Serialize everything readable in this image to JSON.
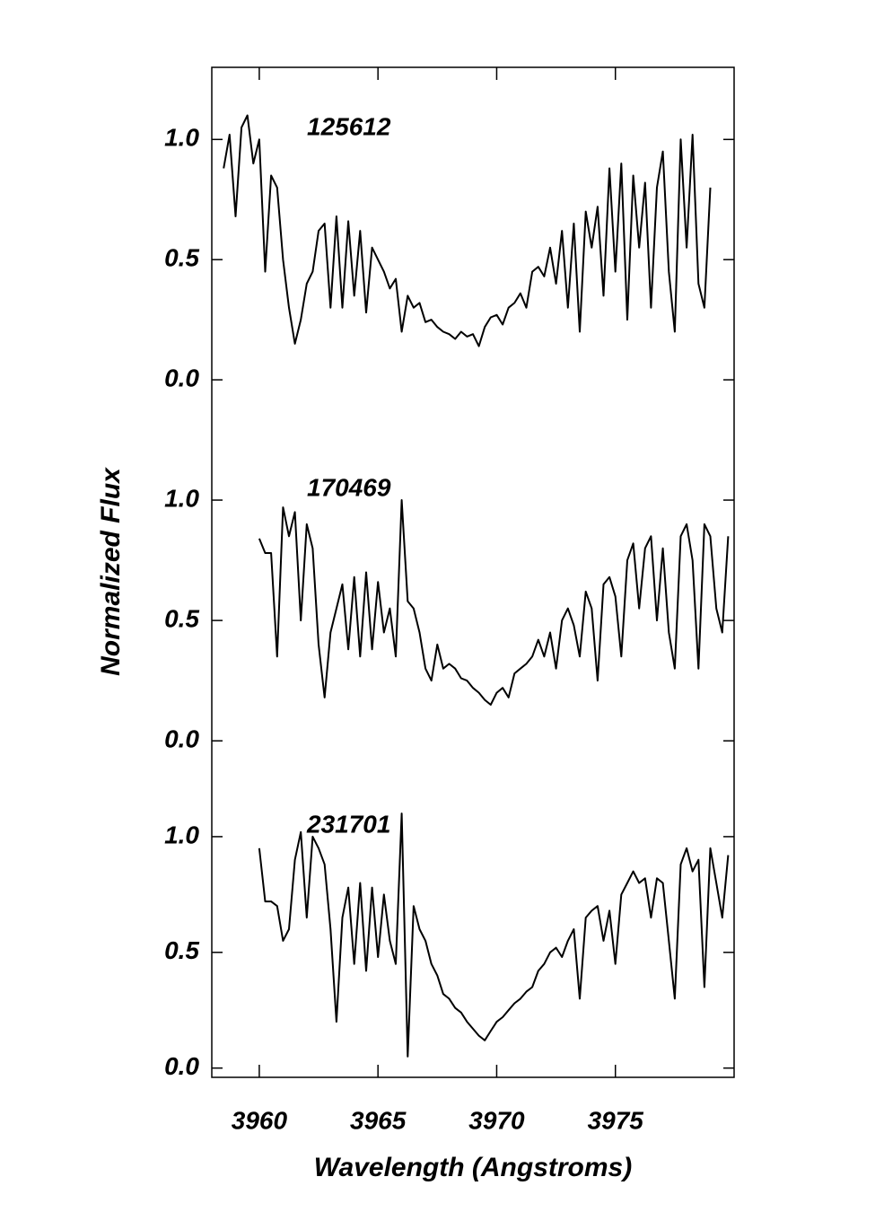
{
  "chart_data": [
    {
      "type": "line",
      "label": "125612",
      "xlim": [
        3958,
        3980
      ],
      "ylim": [
        -0.25,
        1.3
      ],
      "yticks": [
        {
          "value": 0,
          "label": "0.0"
        },
        {
          "value": 0.5,
          "label": "0.5"
        },
        {
          "value": 1,
          "label": "1.0"
        }
      ],
      "color": "#000000",
      "x": [
        3958.5,
        3958.75,
        3959,
        3959.25,
        3959.5,
        3959.75,
        3960,
        3960.25,
        3960.5,
        3960.75,
        3961,
        3961.25,
        3961.5,
        3961.75,
        3962,
        3962.25,
        3962.5,
        3962.75,
        3963,
        3963.25,
        3963.5,
        3963.75,
        3964,
        3964.25,
        3964.5,
        3964.75,
        3965,
        3965.25,
        3965.5,
        3965.75,
        3966,
        3966.25,
        3966.5,
        3966.75,
        3967,
        3967.25,
        3967.5,
        3967.75,
        3968,
        3968.25,
        3968.5,
        3968.75,
        3969,
        3969.25,
        3969.5,
        3969.75,
        3970,
        3970.25,
        3970.5,
        3970.75,
        3971,
        3971.25,
        3971.5,
        3971.75,
        3972,
        3972.25,
        3972.5,
        3972.75,
        3973,
        3973.25,
        3973.5,
        3973.75,
        3974,
        3974.25,
        3974.5,
        3974.75,
        3975,
        3975.25,
        3975.5,
        3975.75,
        3976,
        3976.25,
        3976.5,
        3976.75,
        3977,
        3977.25,
        3977.5,
        3977.75,
        3978,
        3978.25,
        3978.5,
        3978.75,
        3979
      ],
      "values": [
        0.88,
        1.02,
        0.68,
        1.05,
        1.1,
        0.9,
        1.0,
        0.45,
        0.85,
        0.8,
        0.5,
        0.3,
        0.15,
        0.25,
        0.4,
        0.45,
        0.62,
        0.65,
        0.3,
        0.68,
        0.3,
        0.66,
        0.35,
        0.62,
        0.28,
        0.55,
        0.5,
        0.45,
        0.38,
        0.42,
        0.2,
        0.35,
        0.3,
        0.32,
        0.24,
        0.25,
        0.22,
        0.2,
        0.19,
        0.17,
        0.2,
        0.18,
        0.19,
        0.14,
        0.22,
        0.26,
        0.27,
        0.23,
        0.3,
        0.32,
        0.36,
        0.3,
        0.45,
        0.47,
        0.43,
        0.55,
        0.4,
        0.62,
        0.3,
        0.65,
        0.2,
        0.7,
        0.55,
        0.72,
        0.35,
        0.88,
        0.45,
        0.9,
        0.25,
        0.85,
        0.55,
        0.82,
        0.3,
        0.8,
        0.95,
        0.45,
        0.2,
        1.0,
        0.55,
        1.02,
        0.4,
        0.3,
        0.8
      ]
    },
    {
      "type": "line",
      "label": "170469",
      "ylabel": "Normalized Flux",
      "xlim": [
        3958,
        3980
      ],
      "ylim": [
        -0.1,
        1.25
      ],
      "yticks": [
        {
          "value": 0,
          "label": "0.0"
        },
        {
          "value": 0.5,
          "label": "0.5"
        },
        {
          "value": 1,
          "label": "1.0"
        }
      ],
      "color": "#000000",
      "x": [
        3960,
        3960.25,
        3960.5,
        3960.75,
        3961,
        3961.25,
        3961.5,
        3961.75,
        3962,
        3962.25,
        3962.5,
        3962.75,
        3963,
        3963.25,
        3963.5,
        3963.75,
        3964,
        3964.25,
        3964.5,
        3964.75,
        3965,
        3965.25,
        3965.5,
        3965.75,
        3966,
        3966.25,
        3966.5,
        3966.75,
        3967,
        3967.25,
        3967.5,
        3967.75,
        3968,
        3968.25,
        3968.5,
        3968.75,
        3969,
        3969.25,
        3969.5,
        3969.75,
        3970,
        3970.25,
        3970.5,
        3970.75,
        3971,
        3971.25,
        3971.5,
        3971.75,
        3972,
        3972.25,
        3972.5,
        3972.75,
        3973,
        3973.25,
        3973.5,
        3973.75,
        3974,
        3974.25,
        3974.5,
        3974.75,
        3975,
        3975.25,
        3975.5,
        3975.75,
        3976,
        3976.25,
        3976.5,
        3976.75,
        3977,
        3977.25,
        3977.5,
        3977.75,
        3978,
        3978.25,
        3978.5,
        3978.75,
        3979,
        3979.25,
        3979.5,
        3979.75
      ],
      "values": [
        0.84,
        0.78,
        0.78,
        0.35,
        0.97,
        0.85,
        0.95,
        0.5,
        0.9,
        0.8,
        0.4,
        0.18,
        0.45,
        0.55,
        0.65,
        0.38,
        0.68,
        0.35,
        0.7,
        0.38,
        0.66,
        0.45,
        0.55,
        0.35,
        1.0,
        0.58,
        0.55,
        0.45,
        0.3,
        0.25,
        0.4,
        0.3,
        0.32,
        0.3,
        0.26,
        0.25,
        0.22,
        0.2,
        0.17,
        0.15,
        0.2,
        0.22,
        0.18,
        0.28,
        0.3,
        0.32,
        0.35,
        0.42,
        0.35,
        0.45,
        0.3,
        0.5,
        0.55,
        0.48,
        0.35,
        0.62,
        0.55,
        0.25,
        0.65,
        0.68,
        0.6,
        0.35,
        0.75,
        0.82,
        0.55,
        0.8,
        0.85,
        0.5,
        0.8,
        0.45,
        0.3,
        0.85,
        0.9,
        0.75,
        0.3,
        0.9,
        0.85,
        0.55,
        0.45,
        0.85
      ]
    },
    {
      "type": "line",
      "label": "231701",
      "xlabel": "Wavelength (Angstroms)",
      "xlim": [
        3958,
        3980
      ],
      "ylim": [
        -0.04,
        1.31
      ],
      "xticks": [
        3960,
        3965,
        3970,
        3975
      ],
      "yticks": [
        {
          "value": 0,
          "label": "0.0"
        },
        {
          "value": 0.5,
          "label": "0.5"
        },
        {
          "value": 1,
          "label": "1.0"
        }
      ],
      "color": "#000000",
      "x": [
        3960,
        3960.25,
        3960.5,
        3960.75,
        3961,
        3961.25,
        3961.5,
        3961.75,
        3962,
        3962.25,
        3962.5,
        3962.75,
        3963,
        3963.25,
        3963.5,
        3963.75,
        3964,
        3964.25,
        3964.5,
        3964.75,
        3965,
        3965.25,
        3965.5,
        3965.75,
        3966,
        3966.25,
        3966.5,
        3966.75,
        3967,
        3967.25,
        3967.5,
        3967.75,
        3968,
        3968.25,
        3968.5,
        3968.75,
        3969,
        3969.25,
        3969.5,
        3969.75,
        3970,
        3970.25,
        3970.5,
        3970.75,
        3971,
        3971.25,
        3971.5,
        3971.75,
        3972,
        3972.25,
        3972.5,
        3972.75,
        3973,
        3973.25,
        3973.5,
        3973.75,
        3974,
        3974.25,
        3974.5,
        3974.75,
        3975,
        3975.25,
        3975.5,
        3975.75,
        3976,
        3976.25,
        3976.5,
        3976.75,
        3977,
        3977.25,
        3977.5,
        3977.75,
        3978,
        3978.25,
        3978.5,
        3978.75,
        3979,
        3979.25,
        3979.5,
        3979.75
      ],
      "values": [
        0.95,
        0.72,
        0.72,
        0.7,
        0.55,
        0.6,
        0.9,
        1.02,
        0.65,
        1.0,
        0.95,
        0.88,
        0.6,
        0.2,
        0.65,
        0.78,
        0.45,
        0.8,
        0.42,
        0.78,
        0.48,
        0.75,
        0.55,
        0.45,
        1.1,
        0.05,
        0.7,
        0.6,
        0.55,
        0.45,
        0.4,
        0.32,
        0.3,
        0.26,
        0.24,
        0.2,
        0.17,
        0.14,
        0.12,
        0.16,
        0.2,
        0.22,
        0.25,
        0.28,
        0.3,
        0.33,
        0.35,
        0.42,
        0.45,
        0.5,
        0.52,
        0.48,
        0.55,
        0.6,
        0.3,
        0.65,
        0.68,
        0.7,
        0.55,
        0.68,
        0.45,
        0.75,
        0.8,
        0.85,
        0.8,
        0.82,
        0.65,
        0.82,
        0.8,
        0.55,
        0.3,
        0.88,
        0.95,
        0.85,
        0.9,
        0.35,
        0.95,
        0.8,
        0.65,
        0.92
      ]
    }
  ]
}
